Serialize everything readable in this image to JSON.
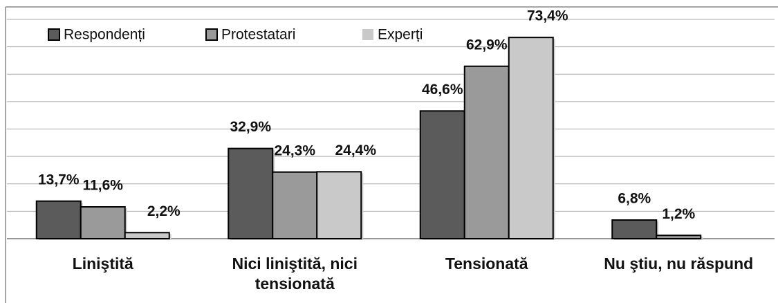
{
  "chart_data": {
    "type": "bar",
    "categories": [
      "Liniştită",
      "Nici liniştită, nici tensionată",
      "Tensionată",
      "Nu ştiu, nu răspund"
    ],
    "series": [
      {
        "name": "Respondenți",
        "color": "#5b5b5b",
        "values": [
          13.7,
          32.9,
          46.6,
          6.8
        ],
        "value_labels": [
          "13,7%",
          "32,9%",
          "46,6%",
          "6,8%"
        ]
      },
      {
        "name": "Protestatari",
        "color": "#9a9a9a",
        "values": [
          11.6,
          24.3,
          62.9,
          1.2
        ],
        "value_labels": [
          "11,6%",
          "24,3%",
          "62,9%",
          "1,2%"
        ]
      },
      {
        "name": "Experți",
        "color": "#c9c9c9",
        "values": [
          2.2,
          24.4,
          73.4,
          null
        ],
        "value_labels": [
          "2,2%",
          "24,4%",
          "73,4%",
          null
        ]
      }
    ],
    "ylim": [
      0,
      80
    ],
    "yticks": [
      0,
      10,
      20,
      30,
      40,
      50,
      60,
      70,
      80
    ],
    "grid": true,
    "legend": "top-left"
  }
}
